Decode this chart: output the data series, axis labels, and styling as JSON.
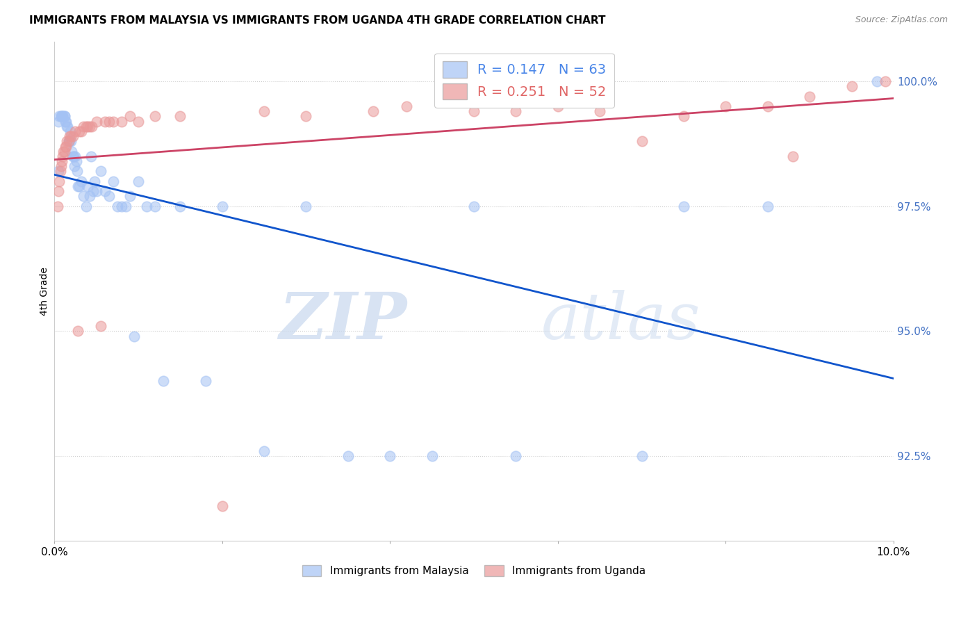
{
  "title": "IMMIGRANTS FROM MALAYSIA VS IMMIGRANTS FROM UGANDA 4TH GRADE CORRELATION CHART",
  "source": "Source: ZipAtlas.com",
  "ylabel": "4th Grade",
  "xlim": [
    0.0,
    10.0
  ],
  "ylim": [
    90.8,
    100.8
  ],
  "yticks": [
    92.5,
    95.0,
    97.5,
    100.0
  ],
  "ytick_labels": [
    "92.5%",
    "95.0%",
    "97.5%",
    "100.0%"
  ],
  "malaysia_color": "#a4c2f4",
  "uganda_color": "#ea9999",
  "malaysia_R": 0.147,
  "malaysia_N": 63,
  "uganda_R": 0.251,
  "uganda_N": 52,
  "malaysia_line_color": "#1155cc",
  "uganda_line_color": "#cc4466",
  "malaysia_legend_color": "#4a86e8",
  "uganda_legend_color": "#e06666",
  "watermark_zip": "ZIP",
  "watermark_atlas": "atlas",
  "malaysia_x": [
    0.05,
    0.05,
    0.06,
    0.08,
    0.08,
    0.09,
    0.1,
    0.1,
    0.12,
    0.12,
    0.13,
    0.14,
    0.15,
    0.16,
    0.17,
    0.18,
    0.19,
    0.2,
    0.21,
    0.22,
    0.23,
    0.24,
    0.25,
    0.26,
    0.27,
    0.28,
    0.3,
    0.32,
    0.35,
    0.38,
    0.4,
    0.42,
    0.44,
    0.46,
    0.48,
    0.5,
    0.55,
    0.6,
    0.65,
    0.7,
    0.75,
    0.8,
    0.85,
    0.9,
    0.95,
    1.0,
    1.1,
    1.2,
    1.3,
    1.5,
    1.8,
    2.0,
    2.5,
    3.0,
    3.5,
    4.0,
    4.5,
    5.0,
    5.5,
    7.0,
    7.5,
    8.5,
    9.8
  ],
  "malaysia_y": [
    98.2,
    99.2,
    99.3,
    99.3,
    99.3,
    99.3,
    99.3,
    99.3,
    99.3,
    99.3,
    99.2,
    99.2,
    99.1,
    99.1,
    98.8,
    98.8,
    99.0,
    98.8,
    98.6,
    98.5,
    98.5,
    98.3,
    98.5,
    98.4,
    98.2,
    97.9,
    97.9,
    98.0,
    97.7,
    97.5,
    97.9,
    97.7,
    98.5,
    97.8,
    98.0,
    97.8,
    98.2,
    97.8,
    97.7,
    98.0,
    97.5,
    97.5,
    97.5,
    97.7,
    94.9,
    98.0,
    97.5,
    97.5,
    94.0,
    97.5,
    94.0,
    97.5,
    92.6,
    97.5,
    92.5,
    92.5,
    92.5,
    97.5,
    92.5,
    92.5,
    97.5,
    97.5,
    100.0
  ],
  "uganda_x": [
    0.04,
    0.05,
    0.06,
    0.07,
    0.08,
    0.09,
    0.1,
    0.11,
    0.12,
    0.13,
    0.14,
    0.15,
    0.17,
    0.18,
    0.2,
    0.22,
    0.25,
    0.28,
    0.3,
    0.32,
    0.35,
    0.38,
    0.4,
    0.42,
    0.45,
    0.5,
    0.55,
    0.6,
    0.65,
    0.7,
    0.8,
    0.9,
    1.0,
    1.2,
    1.5,
    2.0,
    2.5,
    3.0,
    3.8,
    4.2,
    5.0,
    5.5,
    6.0,
    6.5,
    7.0,
    7.5,
    8.0,
    8.5,
    8.8,
    9.0,
    9.5,
    9.9
  ],
  "uganda_y": [
    97.5,
    97.8,
    98.0,
    98.2,
    98.3,
    98.4,
    98.5,
    98.6,
    98.6,
    98.7,
    98.7,
    98.8,
    98.8,
    98.9,
    98.9,
    98.9,
    99.0,
    95.0,
    99.0,
    99.0,
    99.1,
    99.1,
    99.1,
    99.1,
    99.1,
    99.2,
    95.1,
    99.2,
    99.2,
    99.2,
    99.2,
    99.3,
    99.2,
    99.3,
    99.3,
    91.5,
    99.4,
    99.3,
    99.4,
    99.5,
    99.4,
    99.4,
    99.5,
    99.4,
    98.8,
    99.3,
    99.5,
    99.5,
    98.5,
    99.7,
    99.9,
    100.0
  ]
}
